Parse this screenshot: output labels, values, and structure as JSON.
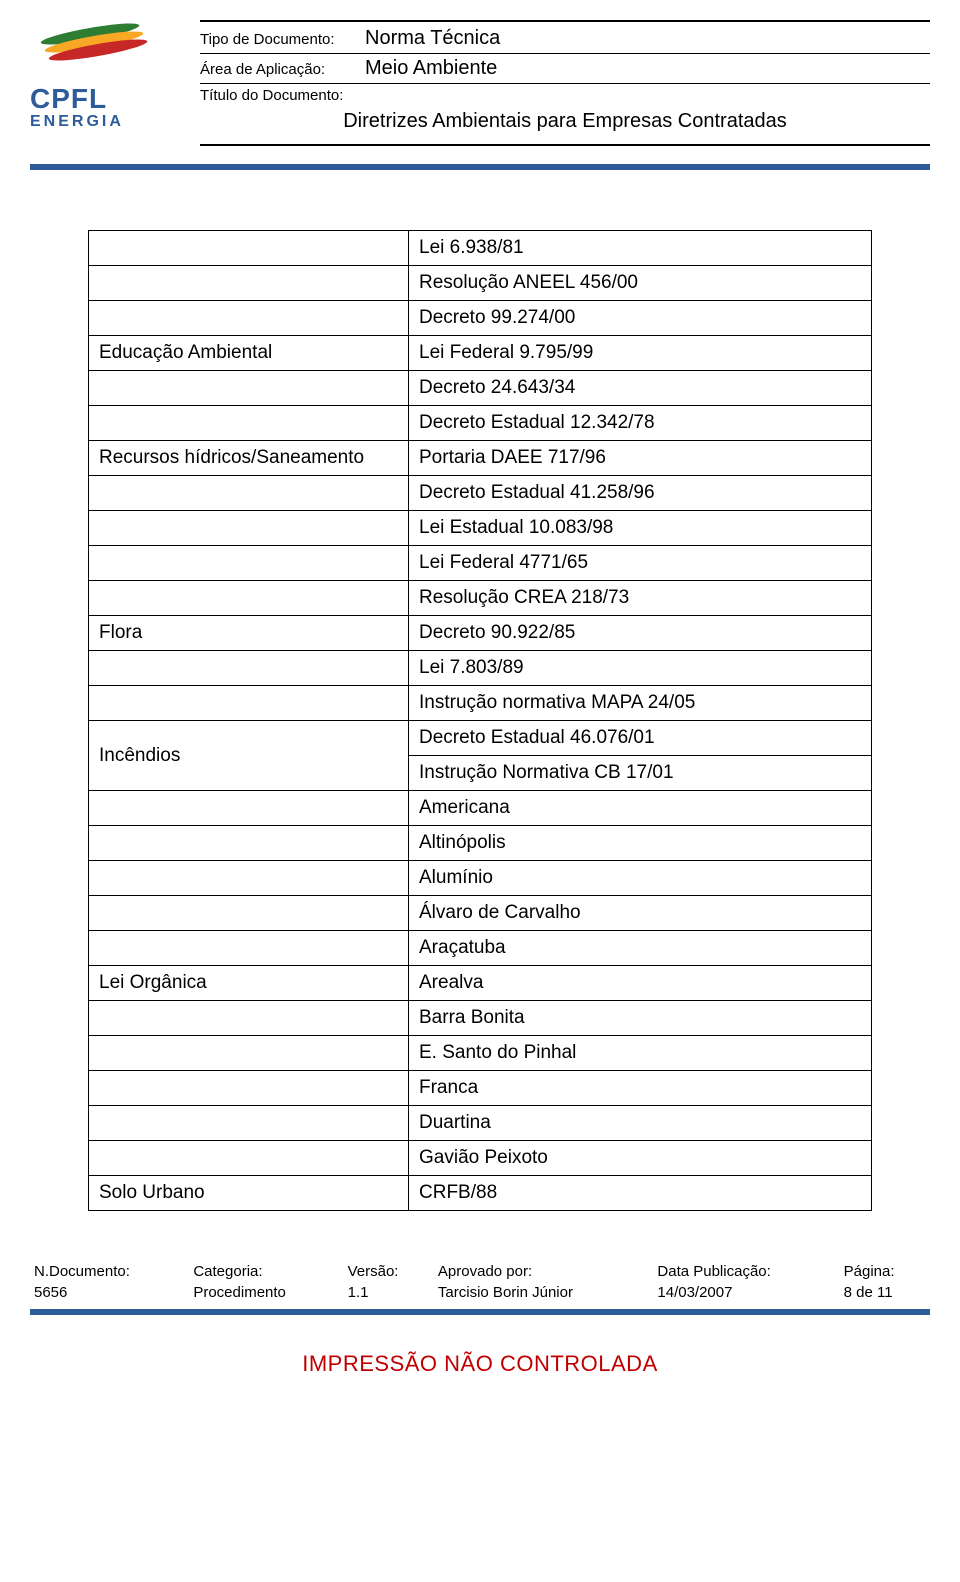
{
  "logo": {
    "brand": "CPFL",
    "sub": "ENERGIA"
  },
  "header": {
    "tipo_label": "Tipo de Documento:",
    "tipo_value": "Norma Técnica",
    "area_label": "Área de Aplicação:",
    "area_value": "Meio Ambiente",
    "titulo_label": "Título do Documento:",
    "titulo_value": "Diretrizes Ambientais para Empresas Contratadas"
  },
  "rows": [
    {
      "label": null,
      "value": "Lei 6.938/81"
    },
    {
      "label": null,
      "value": "Resolução ANEEL 456/00"
    },
    {
      "label": null,
      "value": "Decreto 99.274/00"
    },
    {
      "label": "Educação Ambiental",
      "value": "Lei Federal 9.795/99"
    },
    {
      "label": null,
      "value": "Decreto 24.643/34"
    },
    {
      "label": null,
      "value": "Decreto Estadual 12.342/78"
    },
    {
      "label": "Recursos hídricos/Saneamento",
      "value": "Portaria DAEE 717/96"
    },
    {
      "label": null,
      "value": "Decreto Estadual 41.258/96"
    },
    {
      "label": null,
      "value": "Lei Estadual 10.083/98"
    },
    {
      "label": null,
      "value": "Lei Federal 4771/65"
    },
    {
      "label": null,
      "value": "Resolução CREA 218/73"
    },
    {
      "label": "Flora",
      "value": "Decreto 90.922/85"
    },
    {
      "label": null,
      "value": "Lei 7.803/89"
    },
    {
      "label": null,
      "value": "Instrução normativa MAPA 24/05"
    },
    {
      "label": "Incêndios",
      "value": "Decreto Estadual 46.076/01",
      "rowspan": 2
    },
    {
      "label": null,
      "value": "Instrução Normativa CB 17/01",
      "skip_label": true
    },
    {
      "label": null,
      "value": "Americana"
    },
    {
      "label": null,
      "value": "Altinópolis"
    },
    {
      "label": null,
      "value": "Alumínio"
    },
    {
      "label": null,
      "value": "Álvaro de Carvalho"
    },
    {
      "label": null,
      "value": "Araçatuba"
    },
    {
      "label": "Lei Orgânica",
      "value": "Arealva"
    },
    {
      "label": null,
      "value": "Barra Bonita"
    },
    {
      "label": null,
      "value": "E. Santo do Pinhal"
    },
    {
      "label": null,
      "value": "Franca"
    },
    {
      "label": null,
      "value": "Duartina"
    },
    {
      "label": null,
      "value": "Gavião Peixoto"
    },
    {
      "label": "Solo Urbano",
      "value": "CRFB/88"
    }
  ],
  "footermeta": {
    "ndoc_k": "N.Documento:",
    "ndoc_v": "5656",
    "cat_k": "Categoria:",
    "cat_v": "Procedimento",
    "ver_k": "Versão:",
    "ver_v": "1.1",
    "apr_k": "Aprovado por:",
    "apr_v": "Tarcisio Borin Júnior",
    "data_k": "Data Publicação:",
    "data_v": "14/03/2007",
    "pag_k": "Página:",
    "pag_v": "8 de 11"
  },
  "stamp": "IMPRESSÃO NÃO CONTROLADA"
}
